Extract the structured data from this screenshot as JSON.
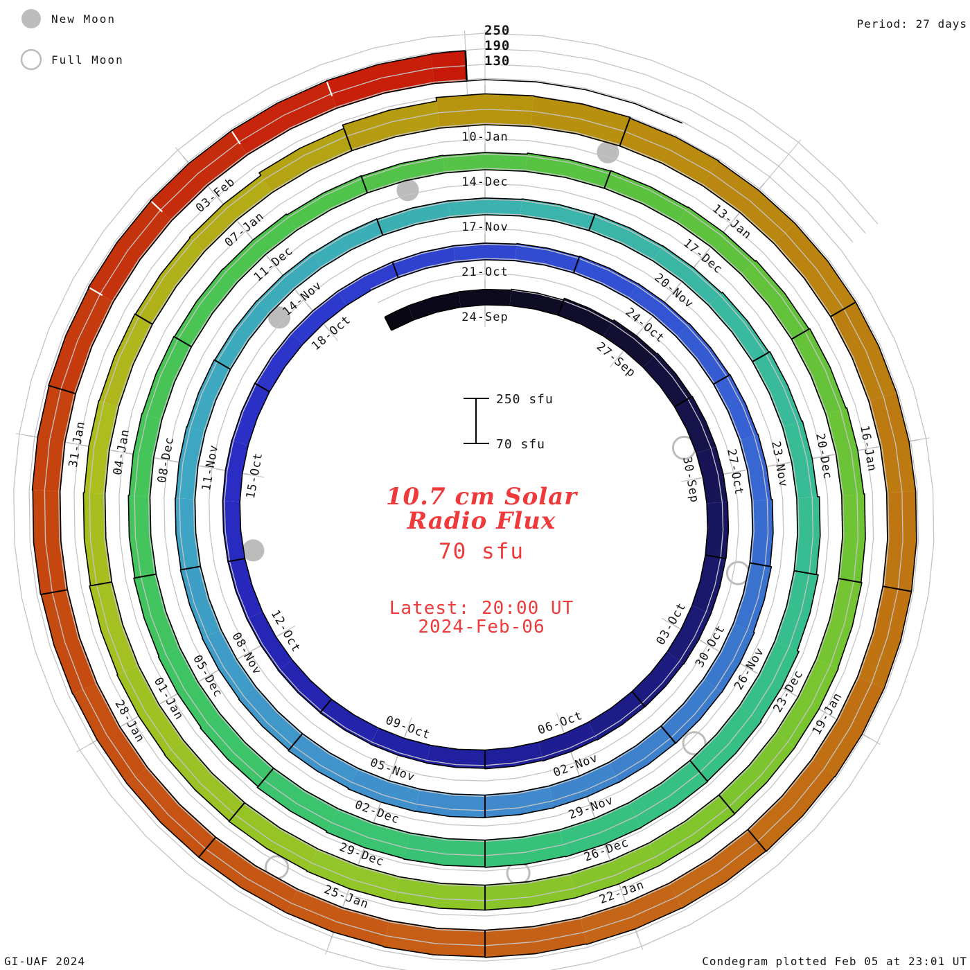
{
  "legend": {
    "new_moon": "New Moon",
    "full_moon": "Full Moon"
  },
  "header": {
    "period": "Period: 27 days"
  },
  "footer": {
    "left": "GI-UAF 2024",
    "right": "Condegram plotted Feb 05 at 23:01 UT"
  },
  "center": {
    "title_line1": "10.7 cm Solar",
    "title_line2": "Radio Flux",
    "baseline_value": "70 sfu",
    "latest_line1": "Latest: 20:00 UT",
    "latest_line2": "2024-Feb-06"
  },
  "scale": {
    "ring_labels": [
      "250",
      "190",
      "130"
    ],
    "bar_top_label": "250 sfu",
    "bar_bottom_label": "70 sfu"
  },
  "colors": {
    "grid": "#c4c4c4",
    "moon": "#bcbcbc",
    "outline": "#000000",
    "accent_red": "#ee3a3a"
  },
  "chart_data": {
    "type": "bar",
    "layout": "spiral-condegram",
    "title": "10.7 cm Solar Radio Flux",
    "units": "sfu",
    "baseline_sfu": 70,
    "grid_levels_sfu": [
      130,
      190,
      250
    ],
    "days_per_turn": 27,
    "start_date": "2023-09-22",
    "latest_date": "2024-02-06",
    "latest_time": "20:00 UT",
    "date_labels": [
      "24-Sep",
      "27-Sep",
      "30-Sep",
      "03-Oct",
      "06-Oct",
      "09-Oct",
      "12-Oct",
      "15-Oct",
      "18-Oct",
      "21-Oct",
      "24-Oct",
      "27-Oct",
      "30-Oct",
      "02-Nov",
      "05-Nov",
      "08-Nov",
      "11-Nov",
      "14-Nov",
      "17-Nov",
      "20-Nov",
      "23-Nov",
      "26-Nov",
      "29-Nov",
      "02-Dec",
      "05-Dec",
      "08-Dec",
      "11-Dec",
      "14-Dec",
      "17-Dec",
      "20-Dec",
      "23-Dec",
      "26-Dec",
      "29-Dec",
      "01-Jan",
      "04-Jan",
      "07-Jan",
      "10-Jan",
      "13-Jan",
      "16-Jan",
      "19-Jan",
      "22-Jan",
      "25-Jan",
      "28-Jan",
      "31-Jan",
      "03-Feb"
    ],
    "daily_flux_sfu": [
      128,
      129,
      130,
      133,
      140,
      145,
      148,
      150,
      150,
      151,
      150,
      150,
      148,
      147,
      145,
      143,
      141,
      140,
      139,
      138,
      137,
      137,
      137,
      137,
      136,
      135,
      135,
      135,
      135,
      135,
      137,
      139,
      140,
      142,
      144,
      146,
      150,
      155,
      159,
      158,
      157,
      156,
      157,
      158,
      159,
      156,
      153,
      151,
      149,
      147,
      145,
      143,
      141,
      140,
      138,
      136,
      135,
      137,
      139,
      140,
      144,
      148,
      151,
      158,
      165,
      172,
      175,
      177,
      178,
      176,
      174,
      172,
      168,
      164,
      161,
      158,
      154,
      151,
      149,
      147,
      145,
      141,
      139,
      137,
      141,
      143,
      145,
      149,
      152,
      156,
      159,
      162,
      164,
      165,
      166,
      167,
      167,
      167,
      167,
      165,
      163,
      161,
      158,
      154,
      151,
      149,
      147,
      150,
      162,
      176,
      190,
      188,
      185,
      183,
      183,
      183,
      183,
      183,
      183,
      183,
      181,
      179,
      178,
      176,
      174,
      172,
      172,
      172,
      172,
      174,
      176,
      178,
      180,
      182,
      183,
      183,
      184,
      185
    ],
    "moons": [
      {
        "type": "full",
        "date": "29-Sep",
        "d": 5.33
      },
      {
        "type": "new",
        "date": "14-Oct",
        "d": 19.62
      },
      {
        "type": "full",
        "date": "28-Oct",
        "d": 34.7
      },
      {
        "type": "new",
        "date": "13-Nov",
        "d": 50.55
      },
      {
        "type": "full",
        "date": "27-Nov",
        "d": 64.3
      },
      {
        "type": "new",
        "date": "12-Dec",
        "d": 80.0
      },
      {
        "type": "full",
        "date": "27-Dec",
        "d": 94.1
      },
      {
        "type": "new",
        "date": "11-Jan",
        "d": 109.4
      },
      {
        "type": "full",
        "date": "25-Jan",
        "d": 123.8
      }
    ],
    "colormap_day_stops": [
      [
        -2.5,
        "#08060f"
      ],
      [
        0,
        "#0d0a1f"
      ],
      [
        3,
        "#130f33"
      ],
      [
        6,
        "#181456"
      ],
      [
        9,
        "#1b1a75"
      ],
      [
        12,
        "#1e1e92"
      ],
      [
        15,
        "#2222a6"
      ],
      [
        18,
        "#2626b6"
      ],
      [
        21,
        "#2a2cc4"
      ],
      [
        24,
        "#2d38cc"
      ],
      [
        27,
        "#3046d0"
      ],
      [
        30,
        "#3355d4"
      ],
      [
        33,
        "#3866d2"
      ],
      [
        36,
        "#3a78cd"
      ],
      [
        39,
        "#3e85cc"
      ],
      [
        42,
        "#4090cc"
      ],
      [
        45,
        "#3f9cc8"
      ],
      [
        48,
        "#3da6c2"
      ],
      [
        51,
        "#3cacba"
      ],
      [
        54,
        "#3bb2b0"
      ],
      [
        57,
        "#3ab7a4"
      ],
      [
        60,
        "#38bc96"
      ],
      [
        63,
        "#37bf8a"
      ],
      [
        66,
        "#36c17e"
      ],
      [
        69,
        "#3ac371"
      ],
      [
        72,
        "#3fc464"
      ],
      [
        75,
        "#45c459"
      ],
      [
        78,
        "#4cc44e"
      ],
      [
        81,
        "#55c345"
      ],
      [
        84,
        "#5ec23e"
      ],
      [
        87,
        "#6ac436"
      ],
      [
        90,
        "#79c52f"
      ],
      [
        93,
        "#85c52b"
      ],
      [
        96,
        "#92c527"
      ],
      [
        99,
        "#9fc122"
      ],
      [
        102,
        "#adbd1e"
      ],
      [
        105,
        "#b3ac17"
      ],
      [
        108,
        "#b7940e"
      ],
      [
        111,
        "#ba8710"
      ],
      [
        114,
        "#bc7a10"
      ],
      [
        117,
        "#c06f12"
      ],
      [
        120,
        "#c56517"
      ],
      [
        123,
        "#c65a15"
      ],
      [
        126,
        "#c64f12"
      ],
      [
        129,
        "#c6420f"
      ],
      [
        132,
        "#c52c0c"
      ],
      [
        136,
        "#c91106"
      ]
    ]
  }
}
